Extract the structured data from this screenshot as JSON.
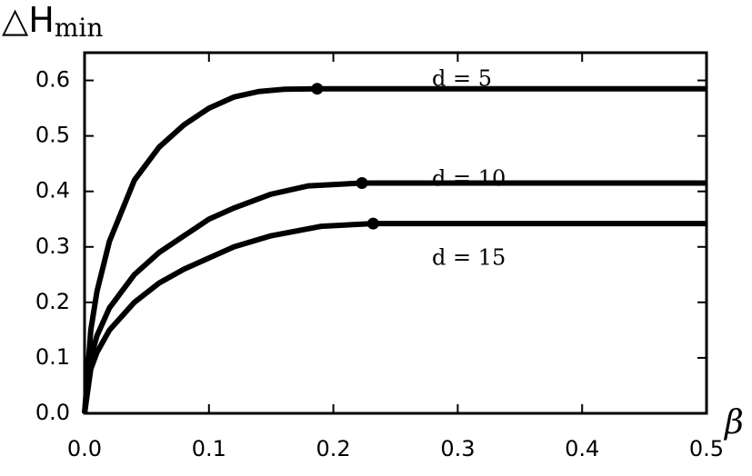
{
  "chart_data": {
    "type": "line",
    "y_label": {
      "text": "△H",
      "subscript": "min"
    },
    "x_label": "β",
    "xlim": [
      0,
      0.5
    ],
    "ylim": [
      0,
      0.65
    ],
    "xticks": [
      {
        "value": 0,
        "label": "0.0"
      },
      0.1,
      0.2,
      0.3,
      0.4,
      0.5
    ],
    "yticks": [
      {
        "value": 0,
        "label": "0.0"
      },
      0.1,
      0.2,
      0.3,
      0.4,
      0.5,
      0.6
    ],
    "series": [
      {
        "name": "d = 5",
        "color": "#000000",
        "x": [
          0,
          0.005,
          0.01,
          0.02,
          0.04,
          0.06,
          0.08,
          0.1,
          0.12,
          0.14,
          0.16,
          0.187,
          0.5
        ],
        "values": [
          0,
          0.15,
          0.22,
          0.31,
          0.42,
          0.48,
          0.52,
          0.55,
          0.57,
          0.58,
          0.584,
          0.585,
          0.585
        ],
        "dot": {
          "x": 0.187,
          "y": 0.585
        }
      },
      {
        "name": "d = 10",
        "color": "#000000",
        "x": [
          0,
          0.005,
          0.01,
          0.02,
          0.04,
          0.06,
          0.08,
          0.1,
          0.12,
          0.15,
          0.18,
          0.223,
          0.5
        ],
        "values": [
          0,
          0.1,
          0.14,
          0.19,
          0.25,
          0.29,
          0.32,
          0.35,
          0.37,
          0.395,
          0.41,
          0.415,
          0.415
        ],
        "dot": {
          "x": 0.223,
          "y": 0.415
        }
      },
      {
        "name": "d = 15",
        "color": "#000000",
        "x": [
          0,
          0.005,
          0.01,
          0.02,
          0.04,
          0.06,
          0.08,
          0.1,
          0.12,
          0.15,
          0.19,
          0.232,
          0.5
        ],
        "values": [
          0,
          0.08,
          0.11,
          0.15,
          0.2,
          0.235,
          0.26,
          0.28,
          0.3,
          0.32,
          0.337,
          0.342,
          0.342
        ],
        "dot": {
          "x": 0.232,
          "y": 0.342
        }
      }
    ]
  }
}
